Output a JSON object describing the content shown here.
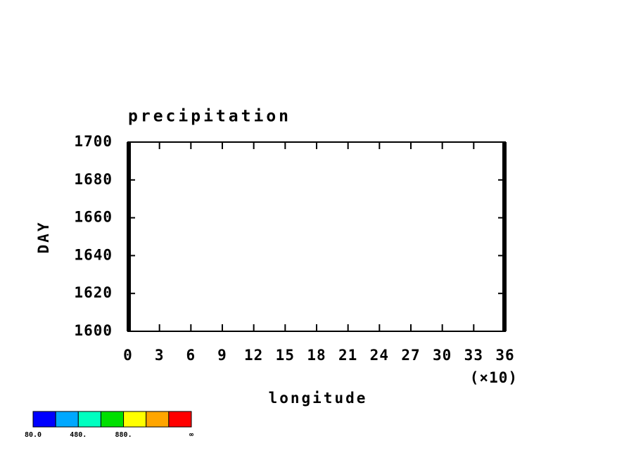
{
  "chart_data": {
    "type": "contour",
    "title": "precipitation",
    "x_label": "longitude",
    "y_label": "DAY",
    "x_scale_label": "(×10)",
    "xlim": [
      0,
      36
    ],
    "xticks": [
      0,
      3,
      6,
      9,
      12,
      15,
      18,
      21,
      24,
      27,
      30,
      33,
      36
    ],
    "ylim": [
      1600,
      1700
    ],
    "yticks": [
      1600,
      1620,
      1640,
      1660,
      1680,
      1700
    ],
    "colorbar": {
      "colors": [
        "#0000ff",
        "#00a8ff",
        "#00ffc0",
        "#00e000",
        "#ffff00",
        "#ffa500",
        "#ff0000"
      ],
      "lim": [
        80,
        1480
      ],
      "ticks": [
        {
          "value": 80,
          "label": "80.0"
        },
        {
          "value": 480,
          "label": "480."
        },
        {
          "value": 880,
          "label": "880."
        }
      ],
      "max_label": "∞"
    }
  }
}
